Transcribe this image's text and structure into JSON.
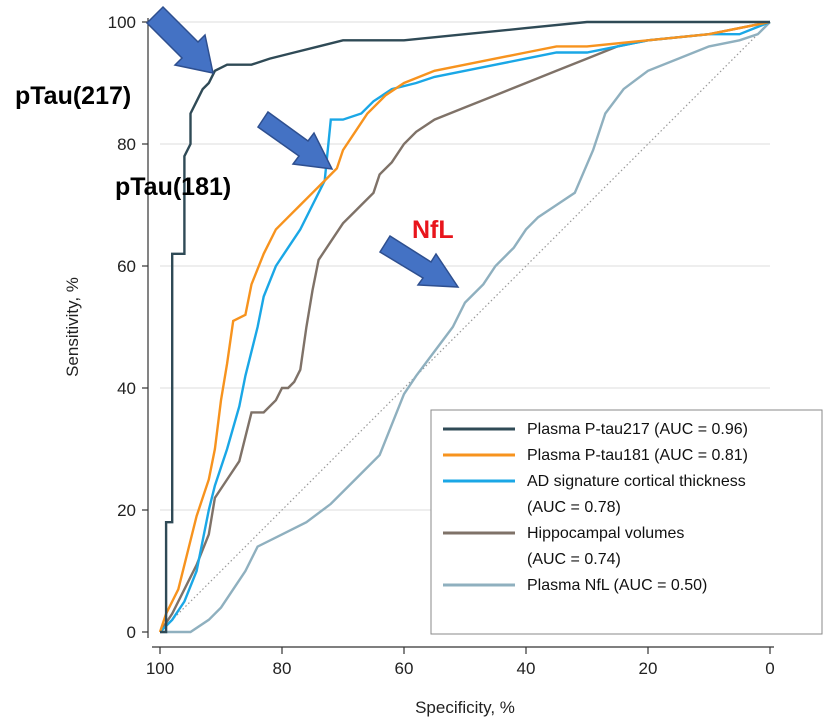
{
  "chart_data": {
    "type": "line",
    "xlabel": "Specificity, %",
    "ylabel": "Sensitivity, %",
    "xlim": [
      100,
      0
    ],
    "ylim": [
      0,
      100
    ],
    "x_ticks": [
      "100",
      "80",
      "60",
      "40",
      "20",
      "0"
    ],
    "y_ticks": [
      "0",
      "20",
      "40",
      "60",
      "80",
      "100"
    ],
    "grid": "horizontal",
    "legend_position": "bottom-right",
    "reference_line": "diagonal dotted",
    "series": [
      {
        "name": "Plasma P-tau217 (AUC = 0.96)",
        "legend_lines": [
          "Plasma P-tau217 (AUC = 0.96)"
        ],
        "color": "#2f4a56",
        "points": [
          [
            100,
            0
          ],
          [
            99,
            0
          ],
          [
            99,
            18
          ],
          [
            98,
            18
          ],
          [
            98,
            62
          ],
          [
            96,
            62
          ],
          [
            96,
            78
          ],
          [
            95,
            80
          ],
          [
            95,
            85
          ],
          [
            94,
            87
          ],
          [
            93,
            89
          ],
          [
            92,
            90
          ],
          [
            91,
            92
          ],
          [
            89,
            93
          ],
          [
            85,
            93
          ],
          [
            82,
            94
          ],
          [
            78,
            95
          ],
          [
            74,
            96
          ],
          [
            70,
            97
          ],
          [
            60,
            97
          ],
          [
            50,
            98
          ],
          [
            40,
            99
          ],
          [
            30,
            100
          ],
          [
            0,
            100
          ]
        ]
      },
      {
        "name": "Plasma P-tau181 (AUC = 0.81)",
        "legend_lines": [
          "Plasma P-tau181 (AUC = 0.81)"
        ],
        "color": "#f7931e",
        "points": [
          [
            100,
            0
          ],
          [
            99,
            3
          ],
          [
            98,
            5
          ],
          [
            97,
            7
          ],
          [
            96,
            11
          ],
          [
            95,
            15
          ],
          [
            94,
            19
          ],
          [
            93,
            22
          ],
          [
            92,
            25
          ],
          [
            91,
            30
          ],
          [
            90,
            38
          ],
          [
            89,
            44
          ],
          [
            88,
            51
          ],
          [
            86,
            52
          ],
          [
            85,
            57
          ],
          [
            83,
            62
          ],
          [
            81,
            66
          ],
          [
            79,
            68
          ],
          [
            77,
            70
          ],
          [
            75,
            72
          ],
          [
            73,
            74
          ],
          [
            71,
            76
          ],
          [
            70,
            79
          ],
          [
            68,
            82
          ],
          [
            66,
            85
          ],
          [
            63,
            88
          ],
          [
            60,
            90
          ],
          [
            55,
            92
          ],
          [
            50,
            93
          ],
          [
            45,
            94
          ],
          [
            40,
            95
          ],
          [
            35,
            96
          ],
          [
            30,
            96
          ],
          [
            20,
            97
          ],
          [
            10,
            98
          ],
          [
            5,
            99
          ],
          [
            0,
            100
          ]
        ]
      },
      {
        "name": "AD signature cortical thickness (AUC = 0.78)",
        "legend_lines": [
          "AD signature cortical thickness",
          "(AUC = 0.78)"
        ],
        "color": "#1aa7e6",
        "points": [
          [
            100,
            0
          ],
          [
            98,
            2
          ],
          [
            96,
            5
          ],
          [
            94,
            10
          ],
          [
            93,
            15
          ],
          [
            92,
            20
          ],
          [
            91,
            24
          ],
          [
            89,
            30
          ],
          [
            87,
            37
          ],
          [
            86,
            42
          ],
          [
            84,
            50
          ],
          [
            83,
            55
          ],
          [
            81,
            60
          ],
          [
            79,
            63
          ],
          [
            77,
            66
          ],
          [
            75,
            70
          ],
          [
            73,
            74
          ],
          [
            72,
            84
          ],
          [
            70,
            84
          ],
          [
            67,
            85
          ],
          [
            65,
            87
          ],
          [
            62,
            89
          ],
          [
            58,
            90
          ],
          [
            55,
            91
          ],
          [
            50,
            92
          ],
          [
            45,
            93
          ],
          [
            40,
            94
          ],
          [
            35,
            95
          ],
          [
            30,
            95
          ],
          [
            25,
            96
          ],
          [
            20,
            97
          ],
          [
            10,
            98
          ],
          [
            5,
            98
          ],
          [
            0,
            100
          ]
        ]
      },
      {
        "name": "Hippocampal volumes (AUC = 0.74)",
        "legend_lines": [
          "Hippocampal volumes",
          "(AUC = 0.74)"
        ],
        "color": "#7f7268",
        "points": [
          [
            100,
            0
          ],
          [
            98,
            3
          ],
          [
            96,
            7
          ],
          [
            94,
            11
          ],
          [
            92,
            16
          ],
          [
            91,
            22
          ],
          [
            89,
            25
          ],
          [
            87,
            28
          ],
          [
            86,
            32
          ],
          [
            85,
            36
          ],
          [
            83,
            36
          ],
          [
            81,
            38
          ],
          [
            80,
            40
          ],
          [
            79,
            40
          ],
          [
            78,
            41
          ],
          [
            77,
            43
          ],
          [
            76,
            50
          ],
          [
            75,
            56
          ],
          [
            74,
            61
          ],
          [
            72,
            64
          ],
          [
            70,
            67
          ],
          [
            68,
            69
          ],
          [
            67,
            70
          ],
          [
            65,
            72
          ],
          [
            64,
            75
          ],
          [
            62,
            77
          ],
          [
            60,
            80
          ],
          [
            58,
            82
          ],
          [
            55,
            84
          ],
          [
            50,
            86
          ],
          [
            45,
            88
          ],
          [
            40,
            90
          ],
          [
            35,
            92
          ],
          [
            30,
            94
          ],
          [
            25,
            96
          ],
          [
            20,
            97
          ],
          [
            10,
            98
          ],
          [
            5,
            99
          ],
          [
            0,
            100
          ]
        ]
      },
      {
        "name": "Plasma NfL (AUC = 0.50)",
        "legend_lines": [
          "Plasma NfL (AUC = 0.50)"
        ],
        "color": "#8fb0bf",
        "points": [
          [
            100,
            0
          ],
          [
            95,
            0
          ],
          [
            92,
            2
          ],
          [
            90,
            4
          ],
          [
            88,
            7
          ],
          [
            86,
            10
          ],
          [
            84,
            14
          ],
          [
            80,
            16
          ],
          [
            76,
            18
          ],
          [
            72,
            21
          ],
          [
            68,
            25
          ],
          [
            64,
            29
          ],
          [
            62,
            34
          ],
          [
            60,
            39
          ],
          [
            58,
            42
          ],
          [
            55,
            46
          ],
          [
            52,
            50
          ],
          [
            50,
            54
          ],
          [
            47,
            57
          ],
          [
            45,
            60
          ],
          [
            42,
            63
          ],
          [
            40,
            66
          ],
          [
            38,
            68
          ],
          [
            35,
            70
          ],
          [
            32,
            72
          ],
          [
            29,
            79
          ],
          [
            27,
            85
          ],
          [
            24,
            89
          ],
          [
            20,
            92
          ],
          [
            15,
            94
          ],
          [
            10,
            96
          ],
          [
            5,
            97
          ],
          [
            2,
            98
          ],
          [
            0,
            100
          ]
        ]
      }
    ],
    "annotations": [
      {
        "text": "pTau(217)",
        "color": "#000000"
      },
      {
        "text": "pTau(181)",
        "color": "#000000"
      },
      {
        "text": "NfL",
        "color": "#e8151c"
      }
    ]
  },
  "colors": {
    "arrow_fill": "#4472c4",
    "arrow_stroke": "#2e4f8f",
    "grid": "#dcdcdc",
    "axis": "#333333",
    "diagonal": "#9a9a9a"
  }
}
